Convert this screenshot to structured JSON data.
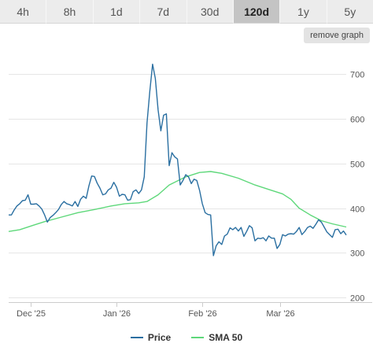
{
  "range_buttons": [
    {
      "label": "4h"
    },
    {
      "label": "8h"
    },
    {
      "label": "1d"
    },
    {
      "label": "7d"
    },
    {
      "label": "30d"
    },
    {
      "label": "120d",
      "active": true
    },
    {
      "label": "1y"
    },
    {
      "label": "5y"
    }
  ],
  "remove_graph_label": "remove graph",
  "colors": {
    "price": "#2a6fa1",
    "sma": "#5ed87a",
    "grid": "#e6e6e6",
    "axis_text": "#555555"
  },
  "chart_data": {
    "type": "line",
    "title": "",
    "xlabel": "",
    "ylabel": "",
    "x_tick_labels": [
      {
        "label": "Dec '25",
        "date": "2025-12-01"
      },
      {
        "label": "Jan '26",
        "date": "2026-01-01"
      },
      {
        "label": "Feb '26",
        "date": "2026-02-01"
      },
      {
        "label": "Mar '26",
        "date": "2026-03-01"
      }
    ],
    "y_ticks": [
      200,
      300,
      400,
      500,
      600,
      700
    ],
    "ylim": [
      190,
      760
    ],
    "xlim": [
      "2025-11-23",
      "2026-03-25"
    ],
    "legend_position": "bottom",
    "grid": true,
    "series": [
      {
        "name": "Price",
        "color": "#2a6fa1",
        "points": [
          [
            "2025-11-23",
            385
          ],
          [
            "2025-11-24",
            385
          ],
          [
            "2025-11-25",
            396
          ],
          [
            "2025-11-26",
            405
          ],
          [
            "2025-11-27",
            410
          ],
          [
            "2025-11-28",
            417
          ],
          [
            "2025-11-29",
            418
          ],
          [
            "2025-11-30",
            430
          ],
          [
            "2025-12-01",
            409
          ],
          [
            "2025-12-02",
            409
          ],
          [
            "2025-12-03",
            410
          ],
          [
            "2025-12-04",
            405
          ],
          [
            "2025-12-05",
            398
          ],
          [
            "2025-12-06",
            385
          ],
          [
            "2025-12-07",
            369
          ],
          [
            "2025-12-08",
            379
          ],
          [
            "2025-12-09",
            384
          ],
          [
            "2025-12-10",
            390
          ],
          [
            "2025-12-11",
            397
          ],
          [
            "2025-12-12",
            408
          ],
          [
            "2025-12-13",
            415
          ],
          [
            "2025-12-14",
            410
          ],
          [
            "2025-12-15",
            408
          ],
          [
            "2025-12-16",
            405
          ],
          [
            "2025-12-17",
            415
          ],
          [
            "2025-12-18",
            404
          ],
          [
            "2025-12-19",
            420
          ],
          [
            "2025-12-20",
            427
          ],
          [
            "2025-12-21",
            422
          ],
          [
            "2025-12-22",
            450
          ],
          [
            "2025-12-23",
            472
          ],
          [
            "2025-12-24",
            471
          ],
          [
            "2025-12-25",
            456
          ],
          [
            "2025-12-26",
            445
          ],
          [
            "2025-12-27",
            430
          ],
          [
            "2025-12-28",
            432
          ],
          [
            "2025-12-29",
            441
          ],
          [
            "2025-12-30",
            445
          ],
          [
            "2025-12-31",
            458
          ],
          [
            "2026-01-01",
            447
          ],
          [
            "2026-01-02",
            427
          ],
          [
            "2026-01-03",
            431
          ],
          [
            "2026-01-04",
            430
          ],
          [
            "2026-01-05",
            418
          ],
          [
            "2026-01-06",
            419
          ],
          [
            "2026-01-07",
            437
          ],
          [
            "2026-01-08",
            441
          ],
          [
            "2026-01-09",
            433
          ],
          [
            "2026-01-10",
            441
          ],
          [
            "2026-01-11",
            470
          ],
          [
            "2026-01-12",
            590
          ],
          [
            "2026-01-13",
            660
          ],
          [
            "2026-01-14",
            722
          ],
          [
            "2026-01-15",
            690
          ],
          [
            "2026-01-16",
            620
          ],
          [
            "2026-01-17",
            573
          ],
          [
            "2026-01-18",
            608
          ],
          [
            "2026-01-19",
            611
          ],
          [
            "2026-01-20",
            495
          ],
          [
            "2026-01-21",
            524
          ],
          [
            "2026-01-22",
            515
          ],
          [
            "2026-01-23",
            510
          ],
          [
            "2026-01-24",
            452
          ],
          [
            "2026-01-25",
            462
          ],
          [
            "2026-01-26",
            475
          ],
          [
            "2026-01-27",
            470
          ],
          [
            "2026-01-28",
            455
          ],
          [
            "2026-01-29",
            465
          ],
          [
            "2026-01-30",
            462
          ],
          [
            "2026-01-31",
            440
          ],
          [
            "2026-02-01",
            410
          ],
          [
            "2026-02-02",
            390
          ],
          [
            "2026-02-03",
            386
          ],
          [
            "2026-02-04",
            385
          ],
          [
            "2026-02-05",
            294
          ],
          [
            "2026-02-06",
            316
          ],
          [
            "2026-02-07",
            325
          ],
          [
            "2026-02-08",
            319
          ],
          [
            "2026-02-09",
            338
          ],
          [
            "2026-02-10",
            342
          ],
          [
            "2026-02-11",
            356
          ],
          [
            "2026-02-12",
            352
          ],
          [
            "2026-02-13",
            357
          ],
          [
            "2026-02-14",
            349
          ],
          [
            "2026-02-15",
            357
          ],
          [
            "2026-02-16",
            337
          ],
          [
            "2026-02-17",
            348
          ],
          [
            "2026-02-18",
            361
          ],
          [
            "2026-02-19",
            356
          ],
          [
            "2026-02-20",
            327
          ],
          [
            "2026-02-21",
            333
          ],
          [
            "2026-02-22",
            332
          ],
          [
            "2026-02-23",
            334
          ],
          [
            "2026-02-24",
            327
          ],
          [
            "2026-02-25",
            338
          ],
          [
            "2026-02-26",
            333
          ],
          [
            "2026-02-27",
            333
          ],
          [
            "2026-02-28",
            310
          ],
          [
            "2026-03-01",
            319
          ],
          [
            "2026-03-02",
            341
          ],
          [
            "2026-03-03",
            338
          ],
          [
            "2026-03-04",
            342
          ],
          [
            "2026-03-05",
            343
          ],
          [
            "2026-03-06",
            342
          ],
          [
            "2026-03-07",
            348
          ],
          [
            "2026-03-08",
            357
          ],
          [
            "2026-03-09",
            341
          ],
          [
            "2026-03-10",
            348
          ],
          [
            "2026-03-11",
            357
          ],
          [
            "2026-03-12",
            360
          ],
          [
            "2026-03-13",
            355
          ],
          [
            "2026-03-14",
            364
          ],
          [
            "2026-03-15",
            374
          ],
          [
            "2026-03-16",
            369
          ],
          [
            "2026-03-17",
            358
          ],
          [
            "2026-03-18",
            347
          ],
          [
            "2026-03-19",
            341
          ],
          [
            "2026-03-20",
            335
          ],
          [
            "2026-03-21",
            352
          ],
          [
            "2026-03-22",
            353
          ],
          [
            "2026-03-23",
            343
          ],
          [
            "2026-03-24",
            349
          ],
          [
            "2026-03-25",
            340
          ]
        ]
      },
      {
        "name": "SMA 50",
        "color": "#5ed87a",
        "points": [
          [
            "2025-11-23",
            348
          ],
          [
            "2025-11-27",
            352
          ],
          [
            "2025-12-02",
            362
          ],
          [
            "2025-12-06",
            370
          ],
          [
            "2025-12-12",
            380
          ],
          [
            "2025-12-18",
            390
          ],
          [
            "2025-12-24",
            397
          ],
          [
            "2025-12-30",
            405
          ],
          [
            "2026-01-04",
            410
          ],
          [
            "2026-01-09",
            412
          ],
          [
            "2026-01-12",
            415
          ],
          [
            "2026-01-16",
            430
          ],
          [
            "2026-01-20",
            452
          ],
          [
            "2026-01-26",
            470
          ],
          [
            "2026-01-31",
            480
          ],
          [
            "2026-02-04",
            482
          ],
          [
            "2026-02-08",
            478
          ],
          [
            "2026-02-14",
            467
          ],
          [
            "2026-02-20",
            452
          ],
          [
            "2026-02-26",
            440
          ],
          [
            "2026-03-02",
            432
          ],
          [
            "2026-03-05",
            420
          ],
          [
            "2026-03-08",
            400
          ],
          [
            "2026-03-12",
            385
          ],
          [
            "2026-03-16",
            372
          ],
          [
            "2026-03-20",
            365
          ],
          [
            "2026-03-25",
            358
          ]
        ]
      }
    ]
  }
}
